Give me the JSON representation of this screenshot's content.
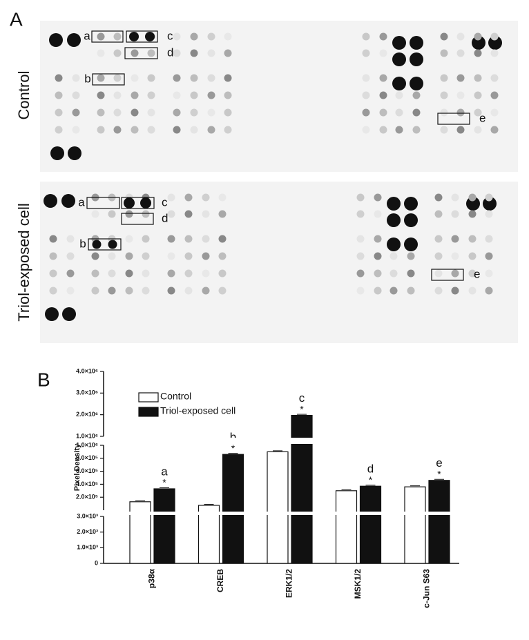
{
  "figure": {
    "panel_a_label": "A",
    "panel_b_label": "B"
  },
  "blots": [
    {
      "label": "Control",
      "box_labels": [
        "a",
        "b",
        "c",
        "d",
        "e"
      ]
    },
    {
      "label": "Triol-exposed cell",
      "box_labels": [
        "a",
        "b",
        "c",
        "d",
        "e"
      ]
    }
  ],
  "chart_data": {
    "type": "bar",
    "y_label": "Pixel Density",
    "categories": [
      "p38α",
      "CREB",
      "ERK1/2",
      "MSK1/2",
      "c-Jun S63"
    ],
    "series": [
      {
        "name": "Control",
        "color": "#ffffff",
        "values": [
          130000,
          75000,
          900000,
          300000,
          360000
        ]
      },
      {
        "name": "Triol-exposed cell",
        "color": "#111111",
        "values": [
          330000,
          860000,
          1970000,
          370000,
          460000
        ]
      }
    ],
    "annotations": [
      {
        "letter": "a",
        "mark": "*"
      },
      {
        "letter": "b",
        "mark": "*"
      },
      {
        "letter": "c",
        "mark": "*"
      },
      {
        "letter": "d",
        "mark": "*"
      },
      {
        "letter": "e",
        "mark": "*"
      }
    ],
    "y_segments": [
      {
        "ylim": [
          0,
          3000
        ],
        "yticks": [
          0,
          {
            "value": 1000,
            "label": "1.0×10³"
          },
          {
            "value": 2000,
            "label": "2.0×10³"
          },
          {
            "value": 3000,
            "label": "3.0×10³"
          }
        ]
      },
      {
        "ylim": [
          0,
          1000000
        ],
        "yticks": [
          {
            "value": 200000,
            "label": "2.0×10⁵"
          },
          {
            "value": 400000,
            "label": "4.0×10⁵"
          },
          {
            "value": 600000,
            "label": "6.0×10⁵"
          },
          {
            "value": 800000,
            "label": "8.0×10⁵"
          },
          {
            "value": 1000000,
            "label": "1.0×10⁶"
          }
        ]
      },
      {
        "ylim": [
          1000000,
          4000000
        ],
        "yticks": [
          {
            "value": 1000000,
            "label": "1.0×10⁶"
          },
          {
            "value": 2000000,
            "label": "2.0×10⁶"
          },
          {
            "value": 3000000,
            "label": "3.0×10⁶"
          },
          {
            "value": 4000000,
            "label": "4.0×10⁶"
          }
        ]
      }
    ]
  }
}
